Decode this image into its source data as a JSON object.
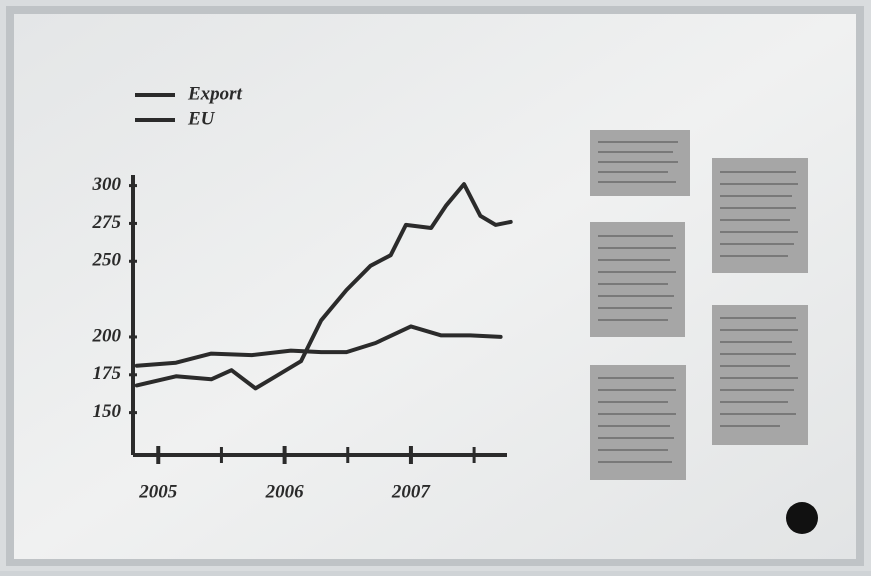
{
  "chart_data": {
    "type": "line",
    "x_is_numeric": true,
    "series": [
      {
        "name": "Export",
        "color": "#2b2b2b",
        "x": [
          2004.83,
          2005.14,
          2005.42,
          2005.58,
          2005.77,
          2005.93,
          2006.13,
          2006.29,
          2006.49,
          2006.68,
          2006.84,
          2006.96,
          2007.16,
          2007.28,
          2007.42,
          2007.55,
          2007.67,
          2007.79
        ],
        "values": [
          168,
          174,
          172,
          178,
          166,
          174,
          184,
          211,
          231,
          247,
          254,
          274,
          272,
          287,
          301,
          280,
          274,
          276
        ]
      },
      {
        "name": "EU",
        "color": "#2b2b2b",
        "x": [
          2004.83,
          2005.14,
          2005.42,
          2005.74,
          2006.05,
          2006.29,
          2006.49,
          2006.72,
          2007.0,
          2007.24,
          2007.47,
          2007.71
        ],
        "values": [
          181,
          183,
          189,
          188,
          191,
          190,
          190,
          196,
          207,
          201,
          201,
          200
        ]
      }
    ],
    "xlim": [
      2004.8,
      2007.8
    ],
    "xticks": [
      2005,
      2006,
      2007
    ],
    "xminorticks": [
      2005.5,
      2006.5,
      2007.5
    ],
    "ylim": [
      122,
      307
    ],
    "yticks": [
      300,
      275,
      250,
      200,
      175,
      150
    ],
    "grid": false,
    "legend": "top-left"
  }
}
